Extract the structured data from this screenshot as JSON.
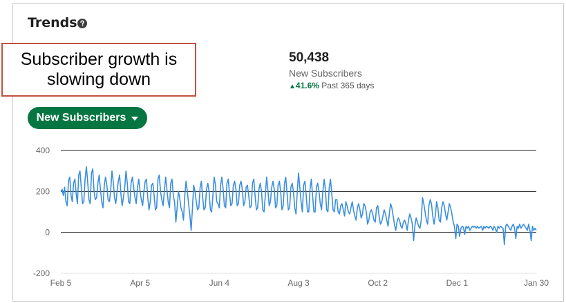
{
  "card": {
    "title": "Trends",
    "help_icon": "question-circle-icon"
  },
  "callout": {
    "text": "Subscriber growth is slowing down",
    "border_color": "#c2503f"
  },
  "kpi": {
    "value": "50,438",
    "label": "New Subscribers",
    "change_pct": "41.6%",
    "change_period": "Past 365 days",
    "change_direction": "up",
    "change_color": "#057642"
  },
  "metric_button": {
    "label": "New Subscribers",
    "icon": "caret-down-icon",
    "color": "#057642"
  },
  "chart_data": {
    "type": "line",
    "title": "",
    "xlabel": "",
    "ylabel": "",
    "ylim": [
      -200,
      400
    ],
    "yticks": [
      "400",
      "200",
      "0",
      "-200"
    ],
    "xticks": [
      "Feb 5",
      "Apr 5",
      "Jun 4",
      "Aug 3",
      "Oct 2",
      "Dec 1",
      "Jan 30"
    ],
    "grid": true,
    "line_color": "#3b8ede",
    "x_start": "Feb 5",
    "x_end": "Jan 30",
    "series": [
      {
        "values": [
          200,
          210,
          180,
          220,
          150,
          130,
          250,
          270,
          180,
          150,
          240,
          260,
          190,
          140,
          280,
          300,
          220,
          140,
          150,
          260,
          320,
          250,
          160,
          140,
          290,
          310,
          200,
          160,
          170,
          240,
          280,
          210,
          150,
          120,
          230,
          270,
          230,
          160,
          150,
          200,
          300,
          250,
          170,
          140,
          200,
          250,
          280,
          190,
          130,
          170,
          220,
          300,
          240,
          150,
          140,
          240,
          270,
          220,
          170,
          140,
          220,
          260,
          200,
          160,
          130,
          200,
          250,
          260,
          170,
          110,
          150,
          230,
          240,
          180,
          110,
          120,
          260,
          280,
          200,
          160,
          130,
          200,
          270,
          210,
          150,
          120,
          240,
          260,
          180,
          150,
          50,
          120,
          200,
          170,
          120,
          100,
          60,
          180,
          250,
          200,
          140,
          80,
          10,
          120,
          230,
          200,
          150,
          110,
          120,
          220,
          250,
          170,
          110,
          120,
          210,
          240,
          200,
          110,
          100,
          180,
          270,
          230,
          150,
          140,
          120,
          230,
          270,
          210,
          130,
          120,
          240,
          260,
          190,
          130,
          140,
          230,
          250,
          210,
          130,
          140,
          230,
          250,
          210,
          130,
          150,
          220,
          230,
          180,
          120,
          130,
          240,
          260,
          180,
          110,
          120,
          210,
          240,
          200,
          110,
          100,
          180,
          270,
          210,
          130,
          150,
          220,
          250,
          210,
          120,
          130,
          230,
          250,
          200,
          110,
          130,
          240,
          270,
          190,
          110,
          120,
          220,
          240,
          200,
          120,
          90,
          200,
          290,
          220,
          150,
          100,
          230,
          250,
          180,
          100,
          100,
          210,
          260,
          180,
          100,
          100,
          220,
          240,
          200,
          140,
          110,
          200,
          260,
          210,
          110,
          100,
          220,
          260,
          190,
          110,
          100,
          160,
          160,
          100,
          90,
          130,
          140,
          110,
          80,
          150,
          130,
          100,
          90,
          120,
          150,
          110,
          80,
          60,
          120,
          140,
          110,
          70,
          90,
          140,
          130,
          100,
          40,
          60,
          100,
          110,
          90,
          60,
          50,
          120,
          130,
          80,
          40,
          50,
          80,
          110,
          90,
          60,
          30,
          90,
          140,
          120,
          80,
          40,
          10,
          50,
          70,
          60,
          30,
          20,
          50,
          60,
          40,
          10,
          60,
          90,
          70,
          40,
          -40,
          30,
          70,
          50,
          30,
          20,
          60,
          170,
          140,
          100,
          60,
          40,
          130,
          160,
          140,
          80,
          40,
          80,
          150,
          120,
          60,
          50,
          120,
          150,
          130,
          90,
          60,
          100,
          140,
          120,
          90,
          50,
          30,
          -30,
          40,
          30,
          -20,
          20,
          30,
          25,
          -10,
          30,
          20,
          30,
          10,
          20,
          30,
          25,
          30,
          20,
          30,
          20,
          25,
          30,
          10,
          30,
          20,
          30,
          25,
          20,
          30,
          25,
          10,
          30,
          20,
          0,
          30,
          20,
          30,
          25,
          20,
          -60,
          30,
          40,
          30,
          20,
          10,
          30,
          40,
          20,
          -30,
          30,
          20,
          40,
          20,
          30,
          40,
          30,
          20,
          10,
          40,
          10,
          -40,
          30,
          10,
          20,
          10
        ]
      }
    ]
  }
}
